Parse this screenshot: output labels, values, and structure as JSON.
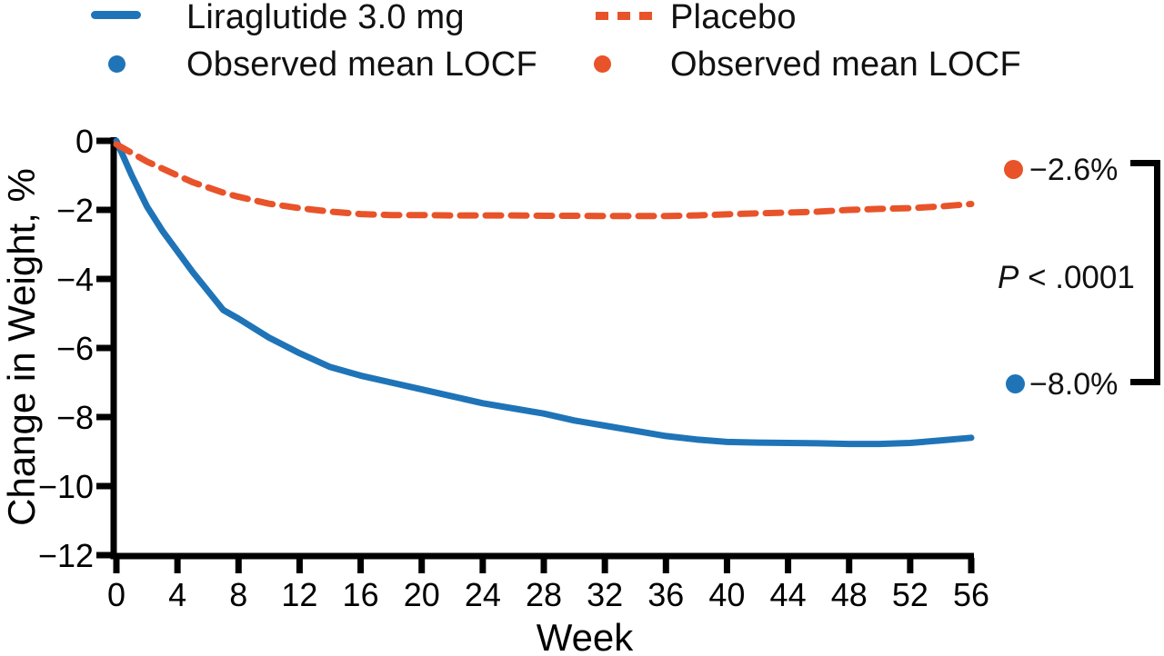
{
  "legend": {
    "items": [
      {
        "label": "Liraglutide 3.0 mg",
        "swatch": "solid-line",
        "color": "#1F74B8"
      },
      {
        "label": "Observed mean LOCF",
        "swatch": "dot",
        "color": "#1F74B8"
      },
      {
        "label": "Placebo",
        "swatch": "dashed-line",
        "color": "#E8532A"
      },
      {
        "label": "Observed mean LOCF",
        "swatch": "dot",
        "color": "#E8532A"
      }
    ]
  },
  "annotations": {
    "placebo_locf": {
      "label": "−2.6%",
      "marker_color": "#E8532A"
    },
    "liraglutide_locf": {
      "label": "−8.0%",
      "marker_color": "#1F74B8"
    },
    "p_value": "P < .0001"
  },
  "chart_data": {
    "type": "line",
    "title": "",
    "xlabel": "Week",
    "ylabel": "Change in Weight, %",
    "xlim": [
      0,
      56
    ],
    "ylim": [
      -12,
      0
    ],
    "grid": false,
    "legend_position": "top",
    "xticks": [
      0,
      4,
      8,
      12,
      16,
      20,
      24,
      28,
      32,
      36,
      40,
      44,
      48,
      52,
      56
    ],
    "yticks": [
      0,
      -2,
      -4,
      -6,
      -8,
      -10,
      -12
    ],
    "ytick_labels": [
      "0",
      "−2",
      "−4",
      "−6",
      "−8",
      "−10",
      "−12"
    ],
    "weeks": [
      0,
      1,
      2,
      3,
      4,
      5,
      6,
      7,
      8,
      10,
      12,
      14,
      16,
      18,
      20,
      22,
      24,
      26,
      28,
      30,
      32,
      34,
      36,
      38,
      40,
      42,
      44,
      46,
      48,
      50,
      52,
      54,
      56
    ],
    "series": [
      {
        "name": "Liraglutide 3.0 mg",
        "color": "#1F74B8",
        "line_style": "solid",
        "week56_locf": "−8.0%",
        "values": [
          0,
          -1.0,
          -1.9,
          -2.6,
          -3.2,
          -3.8,
          -4.35,
          -4.9,
          -5.15,
          -5.7,
          -6.15,
          -6.55,
          -6.8,
          -7.0,
          -7.2,
          -7.4,
          -7.6,
          -7.75,
          -7.9,
          -8.1,
          -8.25,
          -8.4,
          -8.55,
          -8.65,
          -8.72,
          -8.74,
          -8.75,
          -8.76,
          -8.78,
          -8.78,
          -8.75,
          -8.68,
          -8.6
        ]
      },
      {
        "name": "Placebo",
        "color": "#E8532A",
        "line_style": "dashed",
        "week56_locf": "−2.6%",
        "values": [
          -0.1,
          -0.35,
          -0.6,
          -0.8,
          -1.0,
          -1.2,
          -1.35,
          -1.5,
          -1.62,
          -1.82,
          -1.95,
          -2.05,
          -2.12,
          -2.15,
          -2.15,
          -2.16,
          -2.16,
          -2.16,
          -2.17,
          -2.17,
          -2.18,
          -2.18,
          -2.18,
          -2.16,
          -2.13,
          -2.1,
          -2.08,
          -2.05,
          -2.0,
          -1.97,
          -1.95,
          -1.9,
          -1.83
        ]
      }
    ],
    "p_value": "P < .0001"
  }
}
